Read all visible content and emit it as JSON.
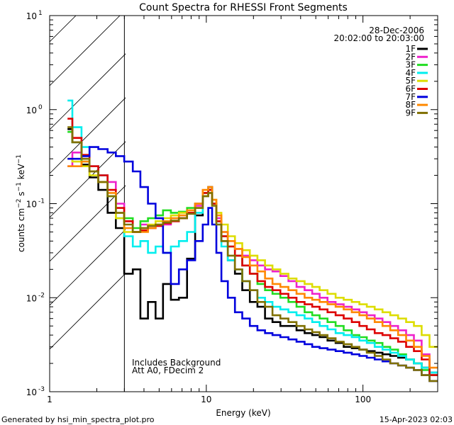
{
  "chart_data": {
    "type": "line",
    "title": "Count Spectra for RHESSI Front Segments",
    "xlabel": "Energy (keV)",
    "ylabel": "counts cm-2 s-1 keV-1",
    "xscale": "log",
    "yscale": "log",
    "xlim": [
      1,
      300
    ],
    "ylim": [
      0.001,
      10
    ],
    "x_ticks": [
      {
        "value": 1,
        "label": "1"
      },
      {
        "value": 10,
        "label": "10"
      },
      {
        "value": 100,
        "label": "100"
      }
    ],
    "y_ticks": [
      {
        "value": 0.001,
        "base": "10",
        "exp": "-3"
      },
      {
        "value": 0.01,
        "base": "10",
        "exp": "-2"
      },
      {
        "value": 0.1,
        "base": "10",
        "exp": "-1"
      },
      {
        "value": 1,
        "base": "10",
        "exp": "0"
      },
      {
        "value": 10,
        "base": "10",
        "exp": "1"
      }
    ],
    "date": "28-Dec-2006",
    "time_range": "20:02:00 to 20:03:00",
    "shaded_region": {
      "xmin": 1,
      "xmax": 3
    },
    "annotations": [
      "Includes Background",
      "Att A0, FDecim 2"
    ],
    "energy_keV": [
      1.3,
      1.5,
      1.7,
      1.9,
      2.2,
      2.5,
      2.8,
      3.2,
      3.6,
      4.0,
      4.5,
      5.0,
      5.6,
      6.3,
      7.1,
      8.0,
      9.0,
      10.0,
      10.6,
      11.2,
      12.0,
      13.0,
      14.5,
      16.0,
      18.0,
      20.0,
      22.5,
      25.0,
      28.0,
      31.5,
      35.5,
      40.0,
      45.0,
      50.0,
      56.0,
      63.0,
      71.0,
      80.0,
      90.0,
      100.0,
      112.0,
      126.0,
      141.0,
      158.0,
      178.0,
      200.0,
      224.0,
      251.0,
      282.0
    ],
    "series": [
      {
        "name": "1F",
        "color": "#000000",
        "values": [
          0.62,
          0.45,
          0.26,
          0.19,
          0.14,
          0.08,
          0.055,
          0.018,
          0.02,
          0.006,
          0.009,
          0.006,
          0.014,
          0.0095,
          0.01,
          0.026,
          0.075,
          0.12,
          0.15,
          0.1,
          0.065,
          0.04,
          0.025,
          0.018,
          0.012,
          0.009,
          0.008,
          0.006,
          0.0055,
          0.005,
          0.005,
          0.0045,
          0.0042,
          0.004,
          0.0038,
          0.0035,
          0.0033,
          0.003,
          0.0029,
          0.0028,
          0.0027,
          0.0026,
          0.0025,
          0.0024,
          0.0023,
          0.0022,
          0.002,
          0.0018,
          0.0016
        ]
      },
      {
        "name": "2F",
        "color": "#ee22cc",
        "values": [
          0.25,
          0.35,
          0.3,
          0.25,
          0.2,
          0.17,
          0.1,
          0.065,
          0.05,
          0.06,
          0.055,
          0.058,
          0.06,
          0.065,
          0.07,
          0.08,
          0.095,
          0.12,
          0.14,
          0.1,
          0.07,
          0.05,
          0.04,
          0.033,
          0.028,
          0.025,
          0.022,
          0.02,
          0.019,
          0.017,
          0.015,
          0.013,
          0.012,
          0.011,
          0.01,
          0.009,
          0.0085,
          0.008,
          0.0075,
          0.007,
          0.0065,
          0.006,
          0.0055,
          0.005,
          0.0045,
          0.004,
          0.0035,
          0.0025,
          0.0015
        ]
      },
      {
        "name": "3F",
        "color": "#22dd22",
        "values": [
          0.58,
          0.45,
          0.28,
          0.22,
          0.17,
          0.12,
          0.08,
          0.07,
          0.055,
          0.065,
          0.07,
          0.075,
          0.085,
          0.08,
          0.082,
          0.09,
          0.1,
          0.13,
          0.14,
          0.1,
          0.065,
          0.045,
          0.035,
          0.028,
          0.022,
          0.018,
          0.014,
          0.012,
          0.011,
          0.01,
          0.009,
          0.008,
          0.007,
          0.0065,
          0.006,
          0.0055,
          0.005,
          0.0045,
          0.004,
          0.0038,
          0.0035,
          0.0033,
          0.003,
          0.0028,
          0.0025,
          0.0022,
          0.002,
          0.0017,
          0.0015
        ]
      },
      {
        "name": "4F",
        "color": "#00eeee",
        "values": [
          1.25,
          0.65,
          0.4,
          0.25,
          0.2,
          0.12,
          0.07,
          0.045,
          0.035,
          0.04,
          0.03,
          0.035,
          0.03,
          0.035,
          0.04,
          0.05,
          0.08,
          0.12,
          0.14,
          0.1,
          0.06,
          0.035,
          0.025,
          0.02,
          0.015,
          0.012,
          0.01,
          0.009,
          0.008,
          0.0075,
          0.007,
          0.0065,
          0.006,
          0.0055,
          0.005,
          0.0046,
          0.0042,
          0.004,
          0.0038,
          0.0035,
          0.0033,
          0.003,
          0.0028,
          0.0026,
          0.0024,
          0.0022,
          0.002,
          0.0018,
          0.0016
        ]
      },
      {
        "name": "5F",
        "color": "#dddd00",
        "values": [
          0.3,
          0.28,
          0.25,
          0.2,
          0.17,
          0.12,
          0.07,
          0.05,
          0.05,
          0.055,
          0.06,
          0.065,
          0.07,
          0.075,
          0.08,
          0.085,
          0.09,
          0.12,
          0.13,
          0.11,
          0.08,
          0.06,
          0.045,
          0.038,
          0.032,
          0.028,
          0.025,
          0.022,
          0.02,
          0.018,
          0.016,
          0.015,
          0.014,
          0.013,
          0.012,
          0.011,
          0.01,
          0.0095,
          0.009,
          0.0085,
          0.008,
          0.0075,
          0.007,
          0.0065,
          0.006,
          0.0055,
          0.005,
          0.004,
          0.003
        ]
      },
      {
        "name": "6F",
        "color": "#dd0000",
        "values": [
          0.8,
          0.5,
          0.33,
          0.25,
          0.2,
          0.14,
          0.09,
          0.065,
          0.05,
          0.052,
          0.055,
          0.058,
          0.062,
          0.065,
          0.07,
          0.08,
          0.1,
          0.13,
          0.14,
          0.1,
          0.065,
          0.045,
          0.035,
          0.028,
          0.022,
          0.018,
          0.015,
          0.013,
          0.012,
          0.011,
          0.01,
          0.009,
          0.0085,
          0.008,
          0.0075,
          0.007,
          0.0065,
          0.006,
          0.0055,
          0.005,
          0.0046,
          0.0042,
          0.004,
          0.0037,
          0.0034,
          0.003,
          0.0027,
          0.0022,
          0.0015
        ]
      },
      {
        "name": "7F",
        "color": "#0000dd",
        "values": [
          0.3,
          0.3,
          0.32,
          0.4,
          0.38,
          0.35,
          0.32,
          0.28,
          0.22,
          0.15,
          0.1,
          0.07,
          0.03,
          0.014,
          0.02,
          0.025,
          0.04,
          0.06,
          0.09,
          0.06,
          0.03,
          0.015,
          0.01,
          0.007,
          0.006,
          0.005,
          0.0045,
          0.0042,
          0.004,
          0.0038,
          0.0036,
          0.0034,
          0.0032,
          0.003,
          0.0029,
          0.0028,
          0.0027,
          0.0026,
          0.0025,
          0.0024,
          0.0023,
          0.0022,
          0.0021,
          0.002,
          0.0019,
          0.0018,
          0.0017,
          0.0015,
          0.0013
        ]
      },
      {
        "name": "8F",
        "color": "#ff8800",
        "values": [
          0.25,
          0.25,
          0.28,
          0.22,
          0.17,
          0.13,
          0.08,
          0.055,
          0.05,
          0.05,
          0.055,
          0.06,
          0.065,
          0.07,
          0.075,
          0.085,
          0.1,
          0.14,
          0.15,
          0.11,
          0.075,
          0.05,
          0.04,
          0.033,
          0.027,
          0.022,
          0.019,
          0.016,
          0.014,
          0.013,
          0.012,
          0.011,
          0.01,
          0.0095,
          0.009,
          0.0085,
          0.008,
          0.0075,
          0.007,
          0.0065,
          0.006,
          0.0055,
          0.005,
          0.0045,
          0.004,
          0.0035,
          0.003,
          0.0024,
          0.0018
        ]
      },
      {
        "name": "9F",
        "color": "#807000",
        "values": [
          0.65,
          0.45,
          0.3,
          0.22,
          0.17,
          0.12,
          0.08,
          0.06,
          0.05,
          0.055,
          0.058,
          0.06,
          0.063,
          0.066,
          0.07,
          0.078,
          0.09,
          0.12,
          0.13,
          0.095,
          0.06,
          0.04,
          0.028,
          0.02,
          0.015,
          0.012,
          0.009,
          0.008,
          0.0065,
          0.006,
          0.0055,
          0.005,
          0.0046,
          0.0043,
          0.004,
          0.0037,
          0.0034,
          0.0032,
          0.003,
          0.0028,
          0.0026,
          0.0024,
          0.0022,
          0.002,
          0.0019,
          0.0018,
          0.0017,
          0.0015,
          0.0013
        ]
      }
    ]
  },
  "footer": {
    "generated_by": "Generated by hsi_min_spectra_plot.pro",
    "date": "15-Apr-2023 02:03"
  }
}
